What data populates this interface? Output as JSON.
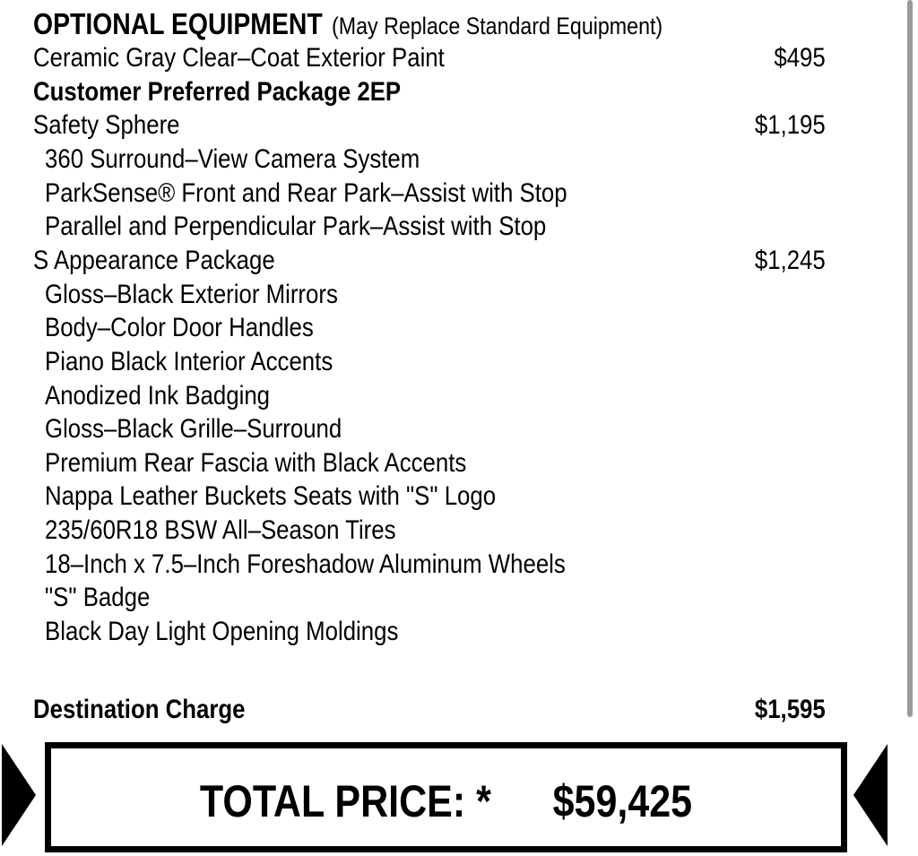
{
  "header": {
    "title": "OPTIONAL EQUIPMENT",
    "note": "(May Replace Standard Equipment)"
  },
  "items": [
    {
      "label": "Ceramic Gray Clear–Coat Exterior Paint",
      "price": "$495",
      "style": "normal"
    },
    {
      "label": "Customer Preferred Package 2EP",
      "price": "",
      "style": "bold"
    },
    {
      "label": "Safety Sphere",
      "price": "$1,195",
      "style": "normal"
    },
    {
      "label": "360 Surround–View Camera System",
      "price": "",
      "style": "sub"
    },
    {
      "label": "ParkSense® Front and Rear Park–Assist with Stop",
      "price": "",
      "style": "sub"
    },
    {
      "label": "Parallel and Perpendicular Park–Assist with Stop",
      "price": "",
      "style": "sub"
    },
    {
      "label": "S Appearance Package",
      "price": "$1,245",
      "style": "normal"
    },
    {
      "label": "Gloss–Black Exterior Mirrors",
      "price": "",
      "style": "sub"
    },
    {
      "label": "Body–Color Door Handles",
      "price": "",
      "style": "sub"
    },
    {
      "label": "Piano Black Interior Accents",
      "price": "",
      "style": "sub"
    },
    {
      "label": "Anodized Ink Badging",
      "price": "",
      "style": "sub"
    },
    {
      "label": "Gloss–Black Grille–Surround",
      "price": "",
      "style": "sub"
    },
    {
      "label": "Premium Rear Fascia with Black Accents",
      "price": "",
      "style": "sub"
    },
    {
      "label": "Nappa Leather Buckets Seats with \"S\" Logo",
      "price": "",
      "style": "sub"
    },
    {
      "label": "235/60R18 BSW All–Season Tires",
      "price": "",
      "style": "sub"
    },
    {
      "label": "18–Inch x 7.5–Inch Foreshadow Aluminum Wheels",
      "price": "",
      "style": "sub"
    },
    {
      "label": "\"S\" Badge",
      "price": "",
      "style": "sub"
    },
    {
      "label": "Black Day Light Opening Moldings",
      "price": "",
      "style": "sub"
    }
  ],
  "destination": {
    "label": "Destination Charge",
    "price": "$1,595"
  },
  "total": {
    "label": "TOTAL PRICE: *",
    "amount": "$59,425"
  }
}
